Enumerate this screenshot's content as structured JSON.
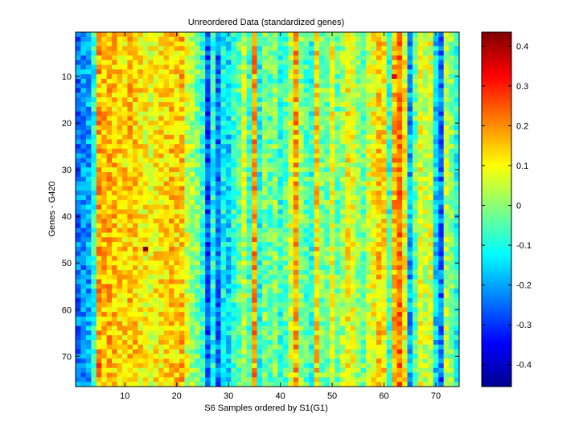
{
  "chart_data": {
    "type": "heatmap",
    "title": "Unreordered Data (standardized genes)",
    "xlabel": "S6 Samples ordered by S1(G1)",
    "ylabel": "Genes - G420",
    "n_cols": 74,
    "n_rows": 76,
    "xlim": [
      0.5,
      74.5
    ],
    "ylim": [
      0.5,
      76.5
    ],
    "xticks": [
      10,
      20,
      30,
      40,
      50,
      60,
      70
    ],
    "yticks": [
      10,
      20,
      30,
      40,
      50,
      60,
      70
    ],
    "colormap": "jet",
    "clim": [
      -0.455,
      0.435
    ],
    "colorbar_ticks": [
      0.4,
      0.3,
      0.2,
      0.1,
      0,
      -0.1,
      -0.2,
      -0.3,
      -0.4
    ],
    "colorbar_tick_labels": [
      "0.4",
      "0.3",
      "0.2",
      "0.1",
      "0",
      "-0.1",
      "-0.2",
      "-0.3",
      "-0.4"
    ],
    "column_profile": [
      -0.24,
      -0.22,
      -0.2,
      -0.1,
      0.18,
      0.16,
      0.17,
      0.15,
      0.14,
      0.13,
      0.15,
      0.14,
      0.12,
      0.1,
      0.09,
      0.11,
      0.12,
      0.13,
      0.15,
      0.13,
      0.16,
      0.06,
      0.02,
      -0.02,
      -0.08,
      -0.27,
      -0.1,
      -0.25,
      -0.12,
      -0.15,
      -0.08,
      -0.05,
      0.05,
      -0.07,
      0.19,
      -0.1,
      -0.02,
      -0.05,
      0.0,
      -0.08,
      -0.05,
      0.05,
      0.18,
      0.0,
      -0.05,
      -0.09,
      0.13,
      -0.02,
      -0.03,
      0.08,
      -0.04,
      0.02,
      0.1,
      0.08,
      0.0,
      -0.03,
      0.06,
      0.09,
      0.14,
      0.12,
      -0.08,
      0.17,
      0.22,
      0.1,
      -0.2,
      -0.03,
      0.08,
      0.05,
      0.07,
      -0.15,
      -0.25,
      0.04,
      0.0,
      -0.1
    ],
    "notable_cells": [
      {
        "col": 14,
        "row": 47,
        "value": 0.43,
        "note": "dark red cell"
      },
      {
        "col": 62,
        "row": 10,
        "value": 0.35
      },
      {
        "col": 5,
        "row": 72,
        "value": 0.3
      }
    ]
  }
}
